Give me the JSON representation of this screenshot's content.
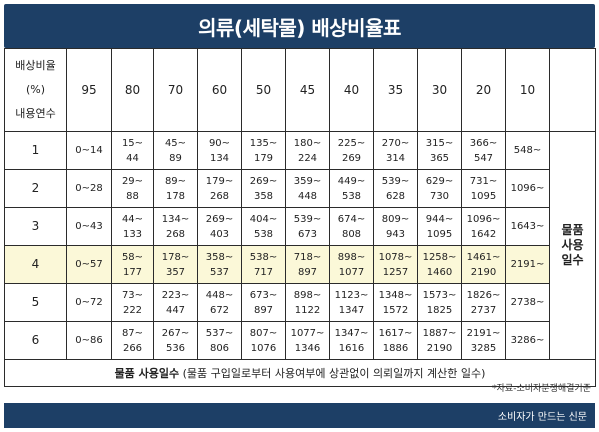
{
  "title": "의류(세탁물) 배상비율표",
  "header": {
    "top_left_lines": [
      "배상비율",
      "(%)",
      "내용연수"
    ],
    "rates": [
      "95",
      "80",
      "70",
      "60",
      "50",
      "45",
      "40",
      "35",
      "30",
      "20",
      "10"
    ]
  },
  "rows": [
    {
      "years": "1",
      "cells": [
        "0~14",
        "15~\n44",
        "45~\n89",
        "90~\n134",
        "135~\n179",
        "180~\n224",
        "225~\n269",
        "270~\n314",
        "315~\n365",
        "366~\n547",
        "548~"
      ]
    },
    {
      "years": "2",
      "cells": [
        "0~28",
        "29~\n88",
        "89~\n178",
        "179~\n268",
        "269~\n358",
        "359~\n448",
        "449~\n538",
        "539~\n628",
        "629~\n730",
        "731~\n1095",
        "1096~"
      ]
    },
    {
      "years": "3",
      "cells": [
        "0~43",
        "44~\n133",
        "134~\n268",
        "269~\n403",
        "404~\n538",
        "539~\n673",
        "674~\n808",
        "809~\n943",
        "944~\n1095",
        "1096~\n1642",
        "1643~"
      ]
    },
    {
      "years": "4",
      "cells": [
        "0~57",
        "58~\n177",
        "178~\n357",
        "358~\n537",
        "538~\n717",
        "718~\n897",
        "898~\n1077",
        "1078~\n1257",
        "1258~\n1460",
        "1461~\n2190",
        "2191~"
      ]
    },
    {
      "years": "5",
      "cells": [
        "0~72",
        "73~\n222",
        "223~\n447",
        "448~\n672",
        "673~\n897",
        "898~\n1122",
        "1123~\n1347",
        "1348~\n1572",
        "1573~\n1825",
        "1826~\n2737",
        "2738~"
      ]
    },
    {
      "years": "6",
      "cells": [
        "0~86",
        "87~\n266",
        "267~\n536",
        "537~\n806",
        "807~\n1076",
        "1077~\n1346",
        "1347~\n1616",
        "1617~\n1886",
        "1887~\n2190",
        "2191~\n3285",
        "3286~"
      ]
    }
  ],
  "highlight_row_years": "4",
  "highlight_color": "#fbf8d8",
  "side_label": "물품사용일수",
  "footnote_bold": "물품 사용일수",
  "footnote_rest": " (물품 구입일로부터 사용여부에 상관없이 의뢰일까지 계산한 일수)",
  "source": "*자료-소비자분쟁해결기준",
  "footer_text": "소비자가 만드는 신문",
  "brand_color": "#1d3f66"
}
